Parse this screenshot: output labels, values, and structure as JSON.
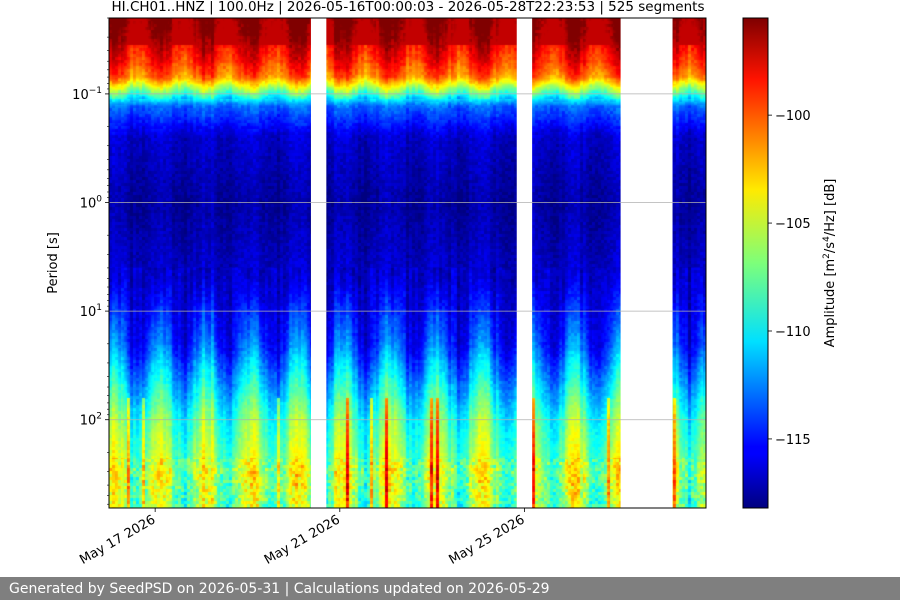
{
  "chart_data": {
    "type": "heatmap",
    "title": "HI.CH01..HNZ | 100.0Hz | 2026-05-16T00:00:03 - 2026-05-28T22:23:53 | 525 segments",
    "xlabel": "",
    "ylabel": "Period [s]",
    "y_scale": "log",
    "y_inverted": true,
    "ylim": [
      0.02,
      650
    ],
    "x_range": [
      "2026-05-16T00:00:03",
      "2026-05-28T22:23:53"
    ],
    "x_ticks": [
      {
        "date": "2026-05-17",
        "label": "May 17 2026"
      },
      {
        "date": "2026-05-21",
        "label": "May 21 2026"
      },
      {
        "date": "2026-05-25",
        "label": "May 25 2026"
      }
    ],
    "y_ticks": [
      {
        "value": 0.1,
        "base": "10",
        "exp": "−1"
      },
      {
        "value": 1,
        "base": "10",
        "exp": "0"
      },
      {
        "value": 10,
        "base": "10",
        "exp": "1"
      },
      {
        "value": 100,
        "base": "10",
        "exp": "2"
      }
    ],
    "grid": "horizontal",
    "colormap": "jet",
    "colorbar": {
      "label_base": "Amplitude [m",
      "label_sup1": "2",
      "label_mid": "/s",
      "label_sup2": "4",
      "label_end": "/Hz] [dB]",
      "range": [
        -118.2,
        -95.5
      ],
      "ticks": [
        {
          "value": -100,
          "label": "−100"
        },
        {
          "value": -105,
          "label": "−105"
        },
        {
          "value": -110,
          "label": "−110"
        },
        {
          "value": -115,
          "label": "−115"
        }
      ]
    },
    "data_gaps": [
      {
        "start": "2026-05-20T09:00:00",
        "end": "2026-05-20T17:00:00"
      },
      {
        "start": "2026-05-24T20:00:00",
        "end": "2026-05-25T04:00:00"
      },
      {
        "start": "2026-05-27T02:00:00",
        "end": "2026-05-28T05:00:00"
      }
    ],
    "spectrum_profile": [
      {
        "period": 0.02,
        "db": -96
      },
      {
        "period": 0.03,
        "db": -97
      },
      {
        "period": 0.05,
        "db": -99
      },
      {
        "period": 0.07,
        "db": -101
      },
      {
        "period": 0.09,
        "db": -106
      },
      {
        "period": 0.13,
        "db": -113
      },
      {
        "period": 0.25,
        "db": -116.5
      },
      {
        "period": 1,
        "db": -117.5
      },
      {
        "period": 5,
        "db": -116.5
      },
      {
        "period": 20,
        "db": -114
      },
      {
        "period": 50,
        "db": -110.5
      },
      {
        "period": 100,
        "db": -108
      },
      {
        "period": 300,
        "db": -106
      },
      {
        "period": 650,
        "db": -107
      }
    ]
  },
  "footer": {
    "text": "Generated by SeedPSD on 2026-05-31 | Calculations updated on 2026-05-29"
  }
}
